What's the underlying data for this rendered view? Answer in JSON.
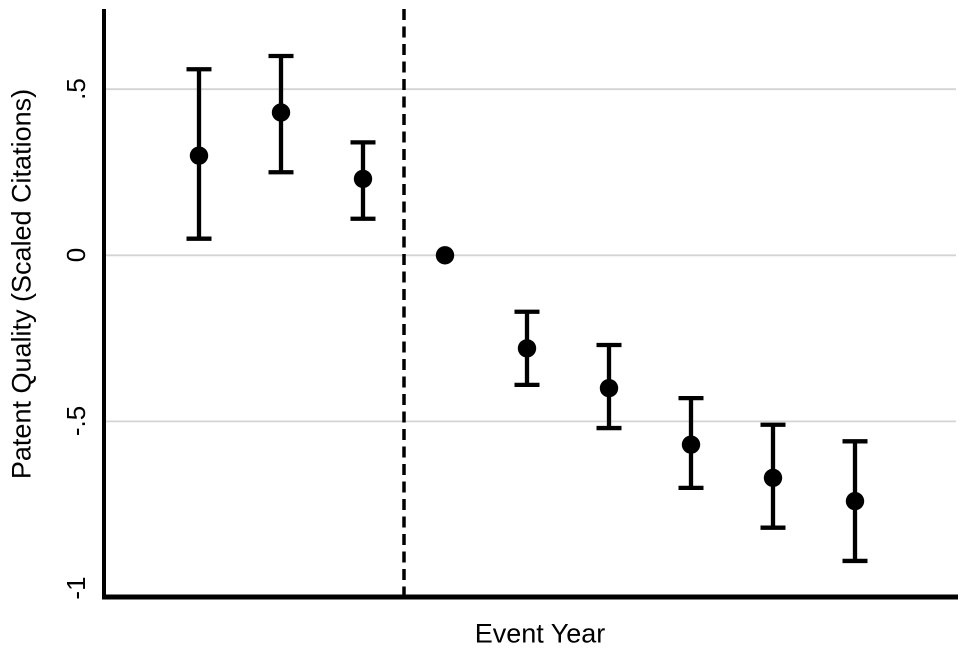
{
  "figure": {
    "background_color": "#ffffff"
  },
  "chart_data": {
    "type": "scatter",
    "subtype": "event-study-coefficient-plot",
    "title": "",
    "xlabel": "Event Year",
    "ylabel": "Patent Quality (Scaled Citations)",
    "grid": true,
    "legend": null,
    "x_tick_labels": [],
    "y_ticks": [
      {
        "label": ".5",
        "value": 0.5
      },
      {
        "label": "0",
        "value": 0
      },
      {
        "label": "-.5",
        "value": -0.5
      },
      {
        "label": "-1",
        "value": -1
      }
    ],
    "gridlines_y": [
      0.5,
      0,
      -0.5
    ],
    "ylim": [
      -1.03,
      0.74
    ],
    "reference_vline": {
      "style": "dashed",
      "color": "#000000",
      "position_between_points": [
        3,
        4
      ]
    },
    "series": [
      {
        "name": "coefficient-with-95ci",
        "marker": "filled-circle",
        "color": "#000000",
        "points": [
          {
            "index": 1,
            "estimate": 0.3,
            "ci_low": 0.05,
            "ci_high": 0.56
          },
          {
            "index": 2,
            "estimate": 0.43,
            "ci_low": 0.25,
            "ci_high": 0.6
          },
          {
            "index": 3,
            "estimate": 0.23,
            "ci_low": 0.11,
            "ci_high": 0.34
          },
          {
            "index": 4,
            "estimate": 0.0,
            "ci_low": null,
            "ci_high": null,
            "is_reference": true
          },
          {
            "index": 5,
            "estimate": -0.28,
            "ci_low": -0.39,
            "ci_high": -0.17
          },
          {
            "index": 6,
            "estimate": -0.4,
            "ci_low": -0.52,
            "ci_high": -0.27
          },
          {
            "index": 7,
            "estimate": -0.57,
            "ci_low": -0.7,
            "ci_high": -0.43
          },
          {
            "index": 8,
            "estimate": -0.67,
            "ci_low": -0.82,
            "ci_high": -0.51
          },
          {
            "index": 9,
            "estimate": -0.74,
            "ci_low": -0.92,
            "ci_high": -0.56
          }
        ]
      }
    ],
    "colors": {
      "marker": "#000000",
      "error_bar": "#000000",
      "gridline": "#d4d4d4",
      "axis": "#000000",
      "background": "#ffffff"
    }
  }
}
